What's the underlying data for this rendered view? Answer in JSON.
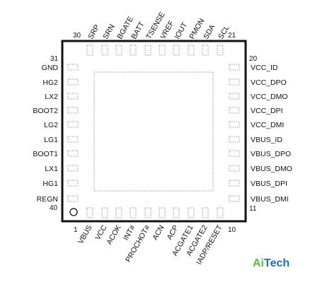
{
  "chip": {
    "top_pins": [
      "SRP",
      "SRN",
      "BGATE",
      "BATT",
      "TSENSE",
      "VREF",
      "IOUT",
      "PMON",
      "SDA",
      "SCL"
    ],
    "bottom_pins": [
      "VBUS",
      "VCC",
      "ACOK",
      "INT#",
      "PROCHOT#",
      "ACN",
      "ACP",
      "ACGATE1",
      "ACGATE2",
      "IADP/RESET"
    ],
    "left_pins": [
      "GND",
      "HG2",
      "LX2",
      "BOOT2",
      "LG2",
      "LG1",
      "BOOT1",
      "LX1",
      "HG1",
      "REGN"
    ],
    "right_pins": [
      "VCC_ID",
      "VCC_DPO",
      "VCC_DMO",
      "VCC_DPI",
      "VCC_DMI",
      "VBUS_ID",
      "VBUS_DPO",
      "VBUS_DMO",
      "VBUS_DPI",
      "VBUS_DMI"
    ],
    "pin_numbers": {
      "top_left": "30",
      "top_right": "21",
      "left_top": "31",
      "left_bottom": "40",
      "right_top": "20",
      "right_bottom": "11",
      "bottom_left": "1",
      "bottom_right": "10"
    }
  },
  "brand": {
    "part1": "Ai",
    "part2": "Tech"
  },
  "colors": {
    "brand_green": "#5cb847",
    "brand_blue": "#1f6fb4",
    "outline": "#111111",
    "pad": "#9a9a9a"
  }
}
